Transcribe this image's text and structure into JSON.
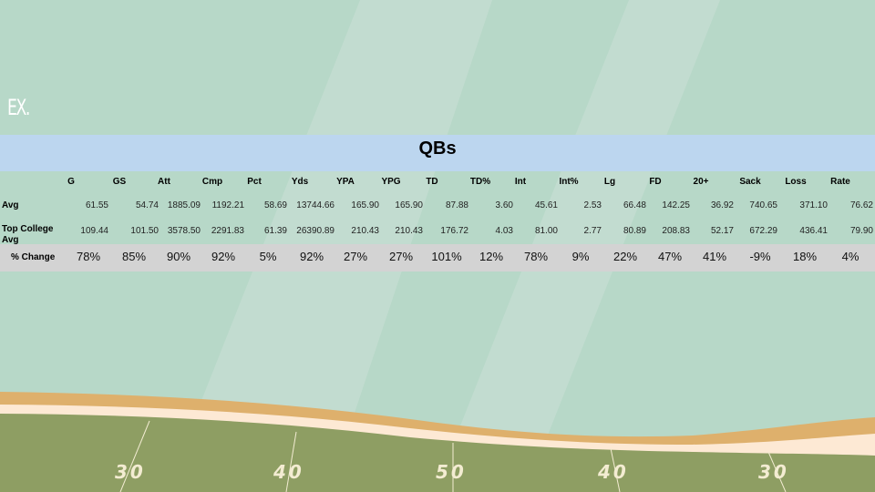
{
  "slide": {
    "corner_label": "EX.",
    "table_title": "QBs",
    "columns": [
      "G",
      "GS",
      "Att",
      "Cmp",
      "Pct",
      "Yds",
      "YPA",
      "YPG",
      "TD",
      "TD%",
      "Int",
      "Int%",
      "Lg",
      "FD",
      "20+",
      "Sack",
      "Loss",
      "Rate"
    ],
    "rows": {
      "avg": {
        "label": "Avg",
        "values": [
          "61.55",
          "54.74",
          "1885.09",
          "1192.21",
          "58.69",
          "13744.66",
          "165.90",
          "165.90",
          "87.88",
          "3.60",
          "45.61",
          "2.53",
          "66.48",
          "142.25",
          "36.92",
          "740.65",
          "371.10",
          "76.62"
        ]
      },
      "top": {
        "label_line1": "Top College",
        "label_line2": "Avg",
        "values": [
          "109.44",
          "101.50",
          "3578.50",
          "2291.83",
          "61.39",
          "26390.89",
          "210.43",
          "210.43",
          "176.72",
          "4.03",
          "81.00",
          "2.77",
          "80.89",
          "208.83",
          "52.17",
          "672.29",
          "436.41",
          "79.90"
        ]
      },
      "change": {
        "label": "% Change",
        "values": [
          "78%",
          "85%",
          "90%",
          "92%",
          "5%",
          "92%",
          "27%",
          "27%",
          "101%",
          "12%",
          "78%",
          "9%",
          "22%",
          "47%",
          "41%",
          "-9%",
          "18%",
          "4%"
        ]
      }
    },
    "field_numbers": [
      "30",
      "40",
      "50",
      "40",
      "30"
    ],
    "colors": {
      "background": "#b7d8c8",
      "title_bar": "#bcd6ef",
      "change_row": "#d3d3d3",
      "field": "#8e9e63",
      "sideline": "#deb06c"
    }
  }
}
